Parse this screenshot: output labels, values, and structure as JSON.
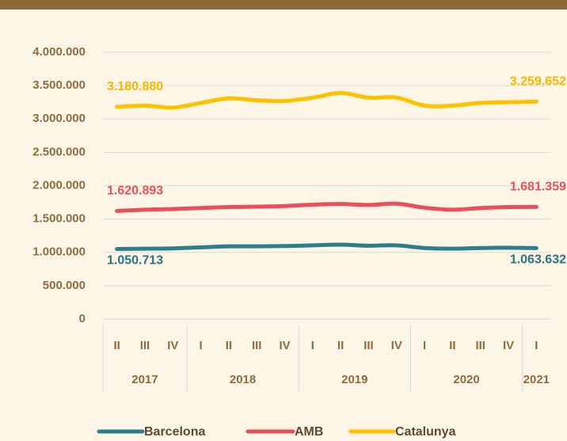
{
  "chart_data": {
    "type": "line",
    "categories": [
      "II",
      "III",
      "IV",
      "I",
      "II",
      "III",
      "IV",
      "I",
      "II",
      "III",
      "IV",
      "I",
      "II",
      "III",
      "IV",
      "I"
    ],
    "groups": [
      {
        "label": "2017",
        "count": 3
      },
      {
        "label": "2018",
        "count": 4
      },
      {
        "label": "2019",
        "count": 4
      },
      {
        "label": "2020",
        "count": 4
      },
      {
        "label": "2021",
        "count": 1
      }
    ],
    "series": [
      {
        "name": "Catalunya",
        "color": "#ffc000",
        "label_color": "#f5b800",
        "values": [
          3180880,
          3200000,
          3170000,
          3240000,
          3310000,
          3280000,
          3270000,
          3320000,
          3390000,
          3320000,
          3320000,
          3200000,
          3200000,
          3240000,
          3250000,
          3259652
        ],
        "value_labels": [
          "3.180.880",
          null,
          null,
          null,
          null,
          null,
          null,
          null,
          null,
          null,
          null,
          null,
          null,
          null,
          null,
          "3.259.652"
        ]
      },
      {
        "name": "AMB",
        "color": "#e8505b",
        "label_color": "#e8505b",
        "values": [
          1620893,
          1640000,
          1650000,
          1665000,
          1680000,
          1685000,
          1695000,
          1715000,
          1725000,
          1710000,
          1730000,
          1670000,
          1640000,
          1665000,
          1680000,
          1681359
        ],
        "value_labels": [
          "1.620.893",
          null,
          null,
          null,
          null,
          null,
          null,
          null,
          null,
          null,
          null,
          null,
          null,
          null,
          null,
          "1.681.359"
        ]
      },
      {
        "name": "Barcelona",
        "color": "#2e7d8c",
        "label_color": "#2a7585",
        "values": [
          1050713,
          1055000,
          1060000,
          1075000,
          1090000,
          1090000,
          1095000,
          1105000,
          1115000,
          1100000,
          1105000,
          1065000,
          1055000,
          1065000,
          1070000,
          1063632
        ],
        "value_labels": [
          "1.050.713",
          null,
          null,
          null,
          null,
          null,
          null,
          null,
          null,
          null,
          null,
          null,
          null,
          null,
          null,
          "1.063.632"
        ]
      }
    ],
    "legend_order": [
      2,
      1,
      0
    ],
    "ylim": [
      0,
      4000000
    ],
    "yticks": [
      0,
      {
        "value": 500000,
        "label": "500.000"
      },
      {
        "value": 1000000,
        "label": "1.000.000"
      },
      {
        "value": 1500000,
        "label": "1.500.000"
      },
      {
        "value": 2000000,
        "label": "2.000.000"
      },
      {
        "value": 2500000,
        "label": "2.500.000"
      },
      {
        "value": 3000000,
        "label": "3.000.000"
      },
      {
        "value": 3500000,
        "label": "3.500.000"
      },
      {
        "value": 4000000,
        "label": "4.000.000"
      }
    ],
    "grid": true
  }
}
